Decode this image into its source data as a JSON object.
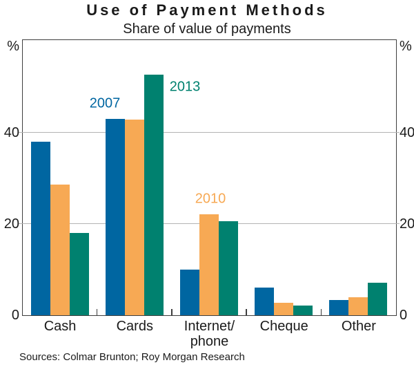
{
  "chart_data": {
    "type": "bar",
    "title": "Use of Payment Methods",
    "subtitle": "Share of value of payments",
    "unit": "%",
    "categories": [
      "Cash",
      "Cards",
      "Internet/\nphone",
      "Cheque",
      "Other"
    ],
    "series": [
      {
        "name": "2007",
        "color": "#0066A1",
        "values": [
          38,
          43,
          10,
          6,
          3.2
        ]
      },
      {
        "name": "2010",
        "color": "#F7A954",
        "values": [
          28.5,
          42.8,
          22,
          2.7,
          3.9
        ]
      },
      {
        "name": "2013",
        "color": "#00816F",
        "values": [
          18,
          52.7,
          20.5,
          2,
          7
        ]
      }
    ],
    "ylim": [
      0,
      60
    ],
    "yticks": [
      0,
      20,
      40
    ],
    "gridline_values": [
      20,
      40
    ],
    "grid": "horizontal",
    "legend": "inline labels colored by series, placed near Cards and Internet/phone bars",
    "source": "Sources: Colmar Brunton; Roy Morgan Research"
  },
  "colors": {
    "series_2007": "#0066A1",
    "series_2010": "#F7A954",
    "series_2013": "#00816F",
    "axis": "#3D3D3D",
    "gridline": "#B3B3B3",
    "text": "#1A1A1A"
  }
}
